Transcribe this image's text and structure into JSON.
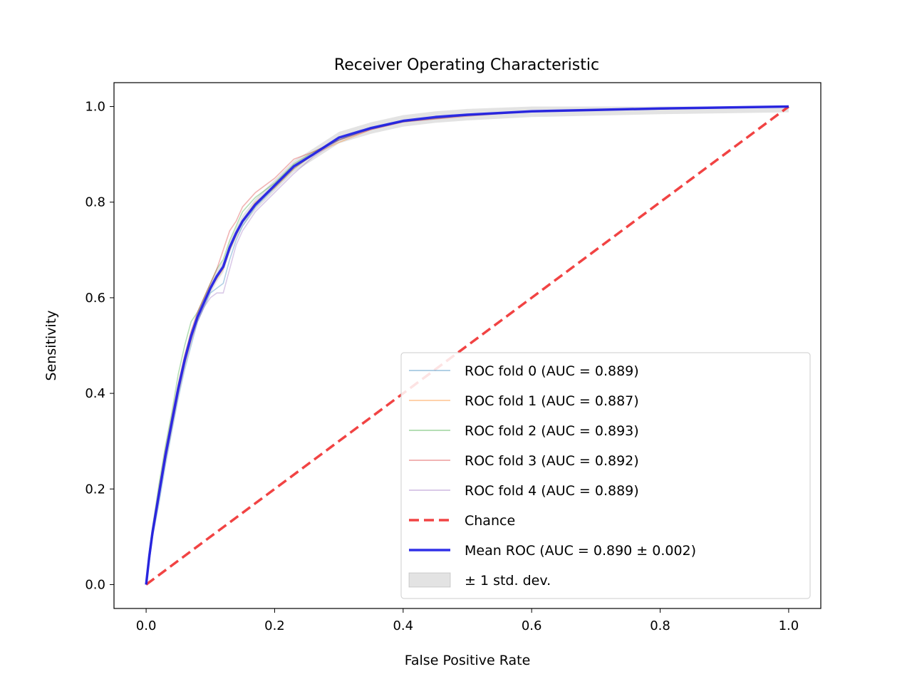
{
  "chart_data": {
    "type": "line",
    "title": "Receiver Operating Characteristic",
    "xlabel": "False Positive Rate",
    "ylabel": "Sensitivity",
    "xlim": [
      -0.05,
      1.05
    ],
    "ylim": [
      -0.05,
      1.05
    ],
    "xticks": [
      "0.0",
      "0.2",
      "0.4",
      "0.6",
      "0.8",
      "1.0"
    ],
    "yticks": [
      "0.0",
      "0.2",
      "0.4",
      "0.6",
      "0.8",
      "1.0"
    ],
    "xtick_values": [
      0,
      0.2,
      0.4,
      0.6,
      0.8,
      1.0
    ],
    "ytick_values": [
      0,
      0.2,
      0.4,
      0.6,
      0.8,
      1.0
    ],
    "legend_position": "lower-right",
    "series": [
      {
        "name": "ROC fold 0 (AUC = 0.889)",
        "color": "#1f77b4",
        "style": "thin",
        "x": [
          0,
          0.005,
          0.01,
          0.02,
          0.03,
          0.04,
          0.05,
          0.06,
          0.07,
          0.08,
          0.09,
          0.1,
          0.11,
          0.12,
          0.13,
          0.14,
          0.15,
          0.17,
          0.2,
          0.23,
          0.26,
          0.3,
          0.35,
          0.4,
          0.5,
          0.6,
          0.8,
          1.0
        ],
        "y": [
          0,
          0.05,
          0.1,
          0.17,
          0.25,
          0.32,
          0.39,
          0.45,
          0.5,
          0.55,
          0.58,
          0.61,
          0.62,
          0.63,
          0.68,
          0.72,
          0.75,
          0.79,
          0.83,
          0.87,
          0.9,
          0.93,
          0.955,
          0.968,
          0.982,
          0.99,
          0.995,
          1.0
        ]
      },
      {
        "name": "ROC fold 1 (AUC = 0.887)",
        "color": "#ff7f0e",
        "style": "thin",
        "x": [
          0,
          0.005,
          0.01,
          0.02,
          0.03,
          0.04,
          0.05,
          0.06,
          0.07,
          0.08,
          0.09,
          0.1,
          0.11,
          0.12,
          0.13,
          0.14,
          0.15,
          0.17,
          0.2,
          0.23,
          0.26,
          0.3,
          0.35,
          0.4,
          0.5,
          0.6,
          0.8,
          1.0
        ],
        "y": [
          0,
          0.06,
          0.11,
          0.19,
          0.26,
          0.33,
          0.4,
          0.46,
          0.51,
          0.56,
          0.59,
          0.62,
          0.64,
          0.66,
          0.7,
          0.73,
          0.76,
          0.8,
          0.83,
          0.87,
          0.9,
          0.925,
          0.952,
          0.968,
          0.98,
          0.99,
          0.995,
          1.0
        ]
      },
      {
        "name": "ROC fold 2 (AUC = 0.893)",
        "color": "#2ca02c",
        "style": "thin",
        "x": [
          0,
          0.005,
          0.01,
          0.02,
          0.03,
          0.04,
          0.05,
          0.06,
          0.07,
          0.08,
          0.09,
          0.1,
          0.11,
          0.12,
          0.13,
          0.14,
          0.15,
          0.17,
          0.2,
          0.23,
          0.26,
          0.3,
          0.35,
          0.4,
          0.5,
          0.6,
          0.8,
          1.0
        ],
        "y": [
          0,
          0.07,
          0.12,
          0.21,
          0.29,
          0.36,
          0.44,
          0.5,
          0.55,
          0.57,
          0.6,
          0.63,
          0.66,
          0.68,
          0.72,
          0.75,
          0.78,
          0.81,
          0.84,
          0.88,
          0.905,
          0.93,
          0.955,
          0.97,
          0.982,
          0.99,
          0.995,
          1.0
        ]
      },
      {
        "name": "ROC fold 3 (AUC = 0.892)",
        "color": "#d62728",
        "style": "thin",
        "x": [
          0,
          0.005,
          0.01,
          0.02,
          0.03,
          0.04,
          0.05,
          0.06,
          0.07,
          0.08,
          0.09,
          0.1,
          0.11,
          0.12,
          0.13,
          0.14,
          0.15,
          0.17,
          0.2,
          0.23,
          0.26,
          0.3,
          0.35,
          0.4,
          0.5,
          0.6,
          0.8,
          1.0
        ],
        "y": [
          0,
          0.06,
          0.11,
          0.2,
          0.28,
          0.35,
          0.42,
          0.48,
          0.53,
          0.57,
          0.6,
          0.63,
          0.66,
          0.7,
          0.74,
          0.76,
          0.79,
          0.82,
          0.85,
          0.89,
          0.905,
          0.93,
          0.952,
          0.968,
          0.982,
          0.99,
          0.995,
          1.0
        ]
      },
      {
        "name": "ROC fold 4 (AUC = 0.889)",
        "color": "#9467bd",
        "style": "thin",
        "x": [
          0,
          0.005,
          0.01,
          0.02,
          0.03,
          0.04,
          0.05,
          0.06,
          0.07,
          0.08,
          0.09,
          0.1,
          0.11,
          0.12,
          0.13,
          0.14,
          0.15,
          0.17,
          0.2,
          0.23,
          0.26,
          0.3,
          0.35,
          0.4,
          0.5,
          0.6,
          0.8,
          1.0
        ],
        "y": [
          0,
          0.05,
          0.1,
          0.18,
          0.26,
          0.33,
          0.4,
          0.46,
          0.51,
          0.55,
          0.58,
          0.6,
          0.61,
          0.61,
          0.66,
          0.71,
          0.74,
          0.78,
          0.82,
          0.86,
          0.895,
          0.93,
          0.952,
          0.968,
          0.98,
          0.99,
          0.995,
          1.0
        ]
      },
      {
        "name": "Chance",
        "color": "#ee2222",
        "style": "dashed",
        "x": [
          0,
          1.0
        ],
        "y": [
          0,
          1.0
        ]
      },
      {
        "name": "Mean ROC (AUC = 0.890 ± 0.002)",
        "color": "#1a1ae6",
        "style": "thick",
        "x": [
          0,
          0.005,
          0.01,
          0.02,
          0.03,
          0.04,
          0.05,
          0.06,
          0.07,
          0.08,
          0.09,
          0.1,
          0.11,
          0.12,
          0.13,
          0.14,
          0.15,
          0.17,
          0.2,
          0.23,
          0.26,
          0.3,
          0.35,
          0.4,
          0.45,
          0.5,
          0.6,
          0.7,
          0.8,
          0.9,
          1.0
        ],
        "y": [
          0,
          0.06,
          0.11,
          0.19,
          0.27,
          0.34,
          0.41,
          0.47,
          0.52,
          0.56,
          0.59,
          0.62,
          0.645,
          0.665,
          0.705,
          0.735,
          0.76,
          0.795,
          0.835,
          0.875,
          0.9,
          0.935,
          0.955,
          0.97,
          0.978,
          0.983,
          0.99,
          0.993,
          0.996,
          0.998,
          1.0
        ]
      }
    ],
    "std_band": {
      "name": "± 1 std. dev.",
      "color": "#b0b0b0"
    }
  }
}
